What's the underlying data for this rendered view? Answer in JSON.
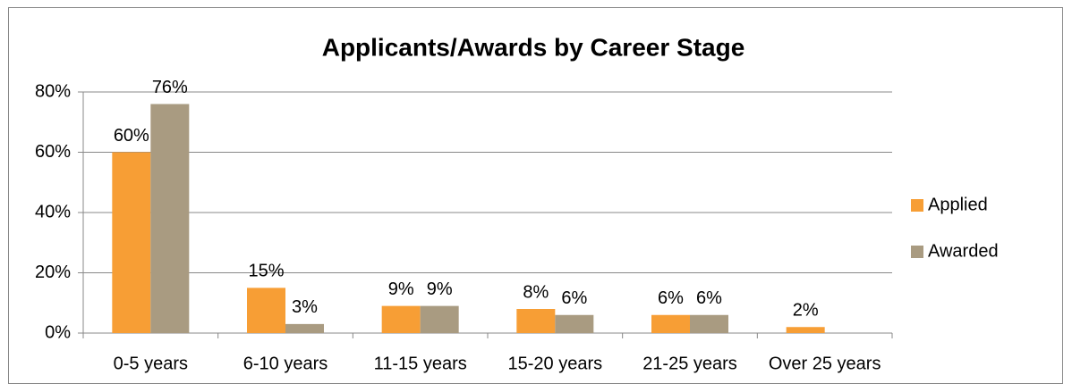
{
  "chart_data": {
    "type": "bar",
    "title": "Applicants/Awards by Career Stage",
    "categories": [
      "0-5 years",
      "6-10 years",
      "11-15 years",
      "15-20 years",
      "21-25 years",
      "Over 25 years"
    ],
    "series": [
      {
        "name": "Applied",
        "color": "#f79e35",
        "values": [
          60,
          15,
          9,
          8,
          6,
          2
        ],
        "value_labels": [
          "60%",
          "15%",
          "9%",
          "8%",
          "6%",
          "2%"
        ]
      },
      {
        "name": "Awarded",
        "color": "#a99b81",
        "values": [
          76,
          3,
          9,
          6,
          6,
          null
        ],
        "value_labels": [
          "76%",
          "3%",
          "9%",
          "6%",
          "6%",
          null
        ]
      }
    ],
    "ylim": [
      0,
      80
    ],
    "yticks": [
      {
        "value": 0,
        "label": "0%"
      },
      {
        "value": 20,
        "label": "20%"
      },
      {
        "value": 40,
        "label": "40%"
      },
      {
        "value": 60,
        "label": "60%"
      },
      {
        "value": 80,
        "label": "80%"
      }
    ],
    "grid": true,
    "legend": "right"
  }
}
